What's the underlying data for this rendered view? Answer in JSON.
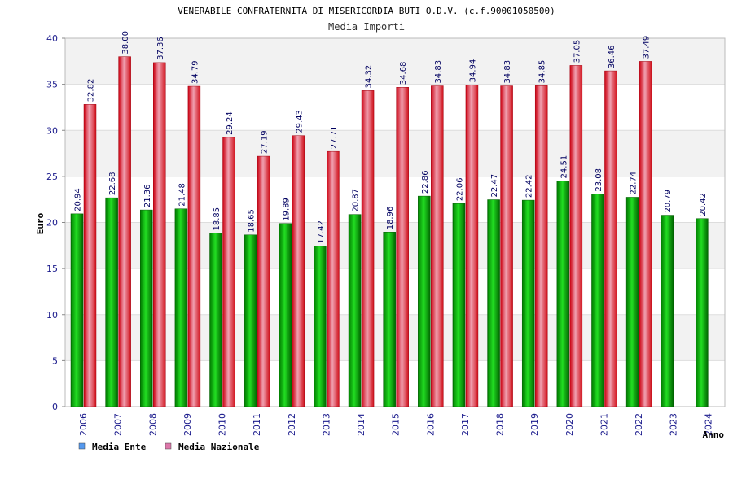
{
  "chart_data": {
    "type": "bar",
    "title": "VENERABILE CONFRATERNITA DI MISERICORDIA BUTI O.D.V. (c.f.90001050500)",
    "subtitle": "Media Importi",
    "xlabel": "Anno",
    "ylabel": "Euro",
    "ylim": [
      0,
      40
    ],
    "yticks": [
      "0",
      "5",
      "10",
      "15",
      "20",
      "25",
      "30",
      "35",
      "40"
    ],
    "categories": [
      "2006",
      "2007",
      "2008",
      "2009",
      "2010",
      "2011",
      "2012",
      "2013",
      "2014",
      "2015",
      "2016",
      "2017",
      "2018",
      "2019",
      "2020",
      "2021",
      "2022",
      "2023",
      "2024"
    ],
    "series": [
      {
        "name": "Media Ente",
        "color": "#00b000",
        "legend_color": "#5599ee",
        "values": [
          20.94,
          22.68,
          21.36,
          21.48,
          18.85,
          18.65,
          19.89,
          17.42,
          20.87,
          18.96,
          22.86,
          22.06,
          22.47,
          22.42,
          24.51,
          23.08,
          22.74,
          20.79,
          20.42
        ],
        "labels": [
          "20.94",
          "22.68",
          "21.36",
          "21.48",
          "18.85",
          "18.65",
          "19.89",
          "17.42",
          "20.87",
          "18.96",
          "22.86",
          "22.06",
          "22.47",
          "22.42",
          "24.51",
          "23.08",
          "22.74",
          "20.79",
          "20.42"
        ]
      },
      {
        "name": "Media Nazionale",
        "color": "#e8202a",
        "legend_color": "#dd77aa",
        "values": [
          32.82,
          38.0,
          37.36,
          34.79,
          29.24,
          27.19,
          29.43,
          27.71,
          34.32,
          34.68,
          34.83,
          34.94,
          34.83,
          34.85,
          37.05,
          36.46,
          37.49,
          null,
          null
        ],
        "labels": [
          "32.82",
          "38.00",
          "37.36",
          "34.79",
          "29.24",
          "27.19",
          "29.43",
          "27.71",
          "34.32",
          "34.68",
          "34.83",
          "34.94",
          "34.83",
          "34.85",
          "37.05",
          "36.46",
          "37.49",
          null,
          null
        ]
      }
    ],
    "grid": true,
    "legend": "bottom-left"
  }
}
